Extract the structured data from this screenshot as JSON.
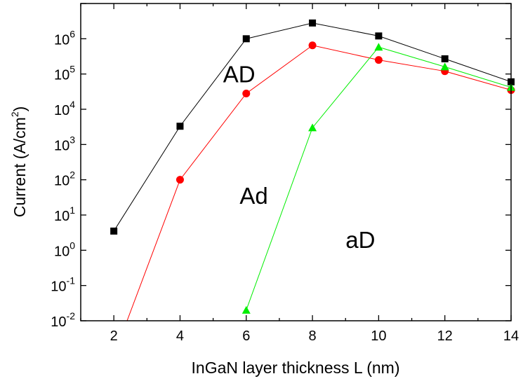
{
  "chart_data": {
    "type": "line",
    "xlabel": "InGaN layer thickness L (nm)",
    "ylabel_main": "Current (A/cm",
    "ylabel_sup": "2",
    "ylabel_tail": ")",
    "xlim": [
      1,
      14
    ],
    "ylim": [
      0.01,
      10000000
    ],
    "yscale": "log",
    "grid": false,
    "x_ticks": [
      2,
      4,
      6,
      8,
      10,
      12,
      14
    ],
    "x_tick_labels": [
      "2",
      "4",
      "6",
      "8",
      "10",
      "12",
      "14"
    ],
    "y_ticks": [
      {
        "value": 0.01,
        "base": "10",
        "exp": "-2"
      },
      {
        "value": 0.1,
        "base": "10",
        "exp": "-1"
      },
      {
        "value": 1,
        "base": "10",
        "exp": "0"
      },
      {
        "value": 10,
        "base": "10",
        "exp": "1"
      },
      {
        "value": 100,
        "base": "10",
        "exp": "2"
      },
      {
        "value": 1000,
        "base": "10",
        "exp": "3"
      },
      {
        "value": 10000,
        "base": "10",
        "exp": "4"
      },
      {
        "value": 100000,
        "base": "10",
        "exp": "5"
      },
      {
        "value": 1000000,
        "base": "10",
        "exp": "6"
      }
    ],
    "series": [
      {
        "marker": "square",
        "color": "#000000",
        "x": [
          2,
          4,
          6,
          8,
          10,
          12,
          14
        ],
        "y": [
          3.5,
          3300,
          1000000,
          2800000,
          1200000,
          270000,
          60000
        ]
      },
      {
        "marker": "circle",
        "color": "#ff0000",
        "x": [
          4,
          6,
          8,
          10,
          12,
          14
        ],
        "y": [
          100,
          28000,
          650000,
          250000,
          120000,
          35000
        ],
        "line_from_x": 2.4,
        "line_from_y": 0.01
      },
      {
        "marker": "triangle",
        "color": "#00ee00",
        "x": [
          6,
          8,
          10,
          12,
          14
        ],
        "y": [
          0.02,
          3000,
          580000,
          160000,
          42000
        ]
      }
    ],
    "annotations": [
      {
        "text": "AD",
        "x": 5.3,
        "y": 100000
      },
      {
        "text": "Ad",
        "x": 5.8,
        "y": 36
      },
      {
        "text": "aD",
        "x": 9.0,
        "y": 2.0
      }
    ]
  }
}
